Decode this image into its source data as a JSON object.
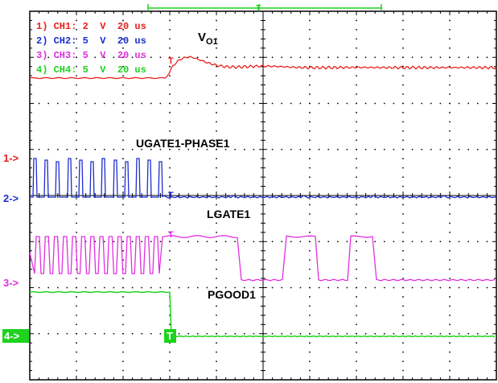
{
  "scope": {
    "trigger_marker": "T",
    "channels": [
      {
        "id": "ch1",
        "setting": "1) CH1: 2  V  20 us",
        "color": "#e8201c",
        "marker": "1->",
        "trig": "T"
      },
      {
        "id": "ch2",
        "setting": "2) CH2: 5  V  20 us",
        "color": "#1c2fd0",
        "marker": "2->",
        "trig": "T"
      },
      {
        "id": "ch3",
        "setting": "3) CH3: 5  V  20 us",
        "color": "#e030e0",
        "marker": "3->",
        "trig": "T"
      },
      {
        "id": "ch4",
        "setting": "4) CH4: 5  V  20 us",
        "color": "#1ed21e",
        "marker": "4->",
        "trig": "T"
      }
    ],
    "signal_labels": {
      "vo1_main": "V",
      "vo1_sub": "O1",
      "ugate": "UGATE1-PHASE1",
      "lgate": "LGATE1",
      "pgood": "PGOOD1"
    }
  }
}
